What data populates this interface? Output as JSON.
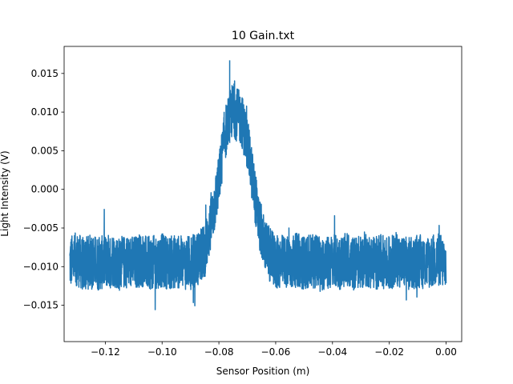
{
  "chart_data": {
    "type": "line",
    "title": "10 Gain.txt",
    "xlabel": "Sensor Position (m)",
    "ylabel": "Light Intensity (V)",
    "xlim": [
      -0.1345,
      0.0055
    ],
    "ylim": [
      -0.0197,
      0.0185
    ],
    "x_ticks": [
      -0.12,
      -0.1,
      -0.08,
      -0.06,
      -0.04,
      -0.02,
      0.0
    ],
    "x_tick_labels": [
      "−0.12",
      "−0.10",
      "−0.08",
      "−0.06",
      "−0.04",
      "−0.02",
      "0.00"
    ],
    "y_ticks": [
      -0.015,
      -0.01,
      -0.005,
      0.0,
      0.005,
      0.01,
      0.015
    ],
    "y_tick_labels": [
      "−0.015",
      "−0.010",
      "−0.005",
      "0.000",
      "0.005",
      "0.010",
      "0.015"
    ],
    "grid": false,
    "line_color": "#1f77b4",
    "series": [
      {
        "x": [
          -0.1325,
          -0.13,
          -0.1275,
          -0.125,
          -0.1225,
          -0.12,
          -0.1175,
          -0.115,
          -0.1125,
          -0.11,
          -0.1075,
          -0.105,
          -0.1025,
          -0.1,
          -0.0975,
          -0.095,
          -0.0925,
          -0.09,
          -0.0875,
          -0.085,
          -0.0825,
          -0.08,
          -0.078,
          -0.076,
          -0.075,
          -0.074,
          -0.072,
          -0.07,
          -0.068,
          -0.066,
          -0.064,
          -0.062,
          -0.06,
          -0.0575,
          -0.055,
          -0.0525,
          -0.05,
          -0.0475,
          -0.045,
          -0.0425,
          -0.04,
          -0.0375,
          -0.035,
          -0.0325,
          -0.03,
          -0.0275,
          -0.025,
          -0.0225,
          -0.02,
          -0.0175,
          -0.015,
          -0.0125,
          -0.01,
          -0.0075,
          -0.005,
          -0.0025,
          0.0
        ],
        "y": [
          -0.0095,
          -0.009,
          -0.0098,
          -0.0092,
          -0.0096,
          -0.0094,
          -0.009,
          -0.0097,
          -0.0093,
          -0.0095,
          -0.0091,
          -0.0096,
          -0.0094,
          -0.0092,
          -0.0095,
          -0.0093,
          -0.0096,
          -0.0094,
          -0.009,
          -0.008,
          -0.004,
          0.001,
          0.007,
          0.0095,
          0.0105,
          0.0098,
          0.009,
          0.006,
          0.001,
          -0.004,
          -0.007,
          -0.0085,
          -0.0095,
          -0.0093,
          -0.0096,
          -0.0091,
          -0.0095,
          -0.0094,
          -0.0092,
          -0.0097,
          -0.0093,
          -0.0095,
          -0.0091,
          -0.0096,
          -0.0094,
          -0.0092,
          -0.0095,
          -0.0093,
          -0.0096,
          -0.009,
          -0.0094,
          -0.0097,
          -0.0092,
          -0.0095,
          -0.0093,
          -0.0091,
          -0.0096
        ],
        "noise_amplitude": 0.0035,
        "peak_value": 0.0167,
        "min_value": -0.018
      }
    ]
  }
}
